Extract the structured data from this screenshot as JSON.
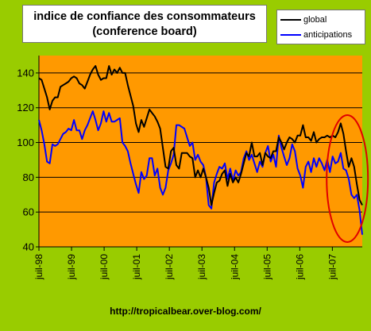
{
  "colors": {
    "page_background": "#99cc00",
    "plot_background": "#ff9900",
    "gridline": "#000000",
    "series_global": "#000000",
    "series_anticipations": "#0000ff",
    "highlight_ellipse": "#e00000"
  },
  "footer": {
    "url": "http://tropicalbear.over-blog.com/"
  },
  "chart_data": {
    "type": "line",
    "title_lines": [
      "indice de confiance des consommateurs",
      "(conference board)"
    ],
    "xlabel": "",
    "ylabel": "",
    "ylim": [
      40,
      150
    ],
    "yticks": [
      40,
      60,
      80,
      100,
      120,
      140
    ],
    "xlim": [
      0,
      119
    ],
    "xtick_labels": [
      "juil-98",
      "juil-99",
      "juil-00",
      "juil-01",
      "juil-02",
      "juil-03",
      "juil-04",
      "juil-05",
      "juil-06",
      "juil-07"
    ],
    "xtick_positions": [
      0,
      12,
      24,
      36,
      48,
      60,
      72,
      84,
      96,
      108
    ],
    "grid": "horizontal",
    "legend_position": "top-right",
    "annotation": "red ellipse circling the final months of both series",
    "series": [
      {
        "name": "global",
        "color": "#000000",
        "values": [
          137,
          136,
          131,
          126,
          119,
          124,
          126,
          126,
          132,
          133,
          134,
          135,
          137,
          138,
          137,
          134,
          133,
          131,
          135,
          139,
          142,
          144,
          139,
          136,
          137,
          137,
          144,
          139,
          142,
          140,
          143,
          140,
          140,
          133,
          127,
          121,
          111,
          106,
          113,
          109,
          114,
          119,
          117,
          115,
          112,
          108,
          97,
          86,
          85,
          95,
          97,
          87,
          85,
          94,
          94,
          94,
          92,
          91,
          80,
          84,
          80,
          85,
          80,
          74,
          64,
          71,
          77,
          78,
          82,
          84,
          75,
          82,
          77,
          80,
          77,
          82,
          88,
          94,
          92,
          100,
          92,
          92,
          94,
          87,
          94,
          92,
          91,
          95,
          95,
          103,
          100,
          96,
          100,
          103,
          102,
          100,
          104,
          104,
          110,
          103,
          103,
          101,
          106,
          100,
          102,
          103,
          103,
          104,
          103,
          104,
          103,
          106,
          111,
          105,
          95,
          86,
          91,
          86,
          76,
          67,
          64
        ]
      },
      {
        "name": "anticipations",
        "color": "#0000ff",
        "values": [
          113,
          107,
          99,
          89,
          88,
          99,
          98,
          99,
          102,
          105,
          106,
          108,
          107,
          113,
          107,
          107,
          102,
          107,
          110,
          114,
          118,
          113,
          107,
          111,
          118,
          112,
          117,
          112,
          112,
          113,
          114,
          100,
          98,
          95,
          88,
          82,
          76,
          71,
          83,
          79,
          81,
          91,
          91,
          81,
          85,
          74,
          70,
          74,
          84,
          88,
          93,
          110,
          110,
          109,
          108,
          103,
          98,
          100,
          90,
          93,
          89,
          87,
          80,
          64,
          62,
          77,
          82,
          86,
          85,
          88,
          79,
          85,
          78,
          84,
          81,
          83,
          91,
          95,
          90,
          93,
          88,
          83,
          89,
          86,
          94,
          98,
          89,
          93,
          86,
          104,
          97,
          92,
          87,
          91,
          99,
          95,
          85,
          81,
          74,
          86,
          89,
          83,
          91,
          86,
          91,
          88,
          84,
          90,
          83,
          92,
          88,
          89,
          94,
          85,
          84,
          79,
          70,
          68,
          70,
          61,
          47
        ]
      }
    ]
  }
}
